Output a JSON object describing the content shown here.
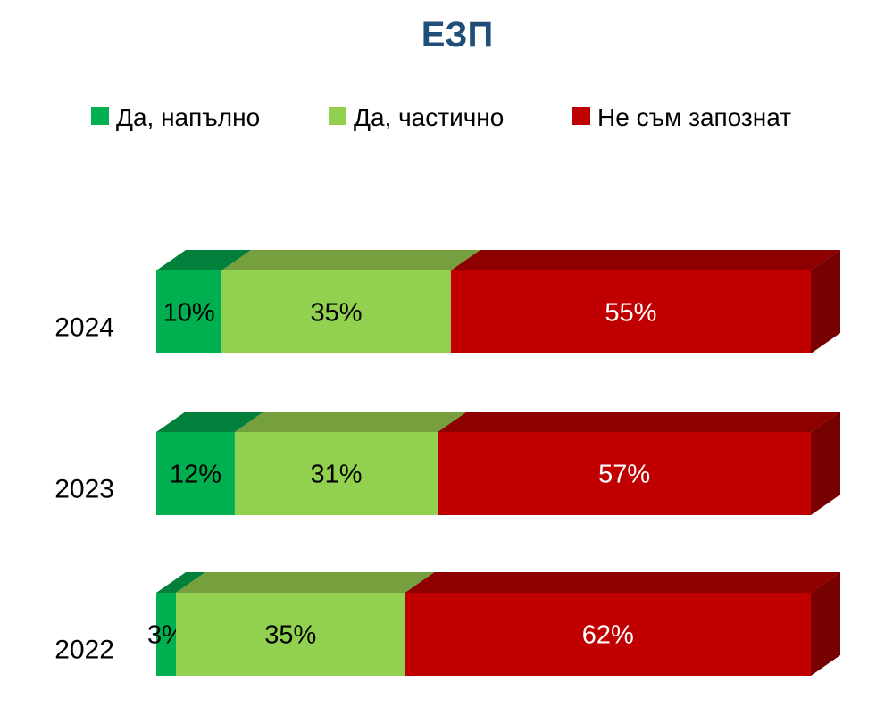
{
  "chart_data": {
    "type": "bar",
    "orientation": "horizontal",
    "stacked": "percent",
    "style": "3d",
    "title": "ЕЗП",
    "title_color": "#1F4E79",
    "categories": [
      "2024",
      "2023",
      "2022"
    ],
    "series": [
      {
        "name": "Да, напълно",
        "color": "#00B050",
        "top_color": "#00803A",
        "values": [
          10,
          12,
          3
        ],
        "labels": [
          "10%",
          "12%",
          "3%"
        ],
        "label_color": "#000000"
      },
      {
        "name": "Да, частично",
        "color": "#92D050",
        "top_color": "#76A03E",
        "values": [
          35,
          31,
          35
        ],
        "labels": [
          "35%",
          "31%",
          "35%"
        ],
        "label_color": "#000000"
      },
      {
        "name": "Не съм запознат",
        "color": "#C00000",
        "top_color": "#8E0000",
        "values": [
          55,
          57,
          62
        ],
        "labels": [
          "55%",
          "57%",
          "62%"
        ],
        "label_color": "#FFFFFF"
      }
    ],
    "legend_position": "top",
    "grid": false
  }
}
